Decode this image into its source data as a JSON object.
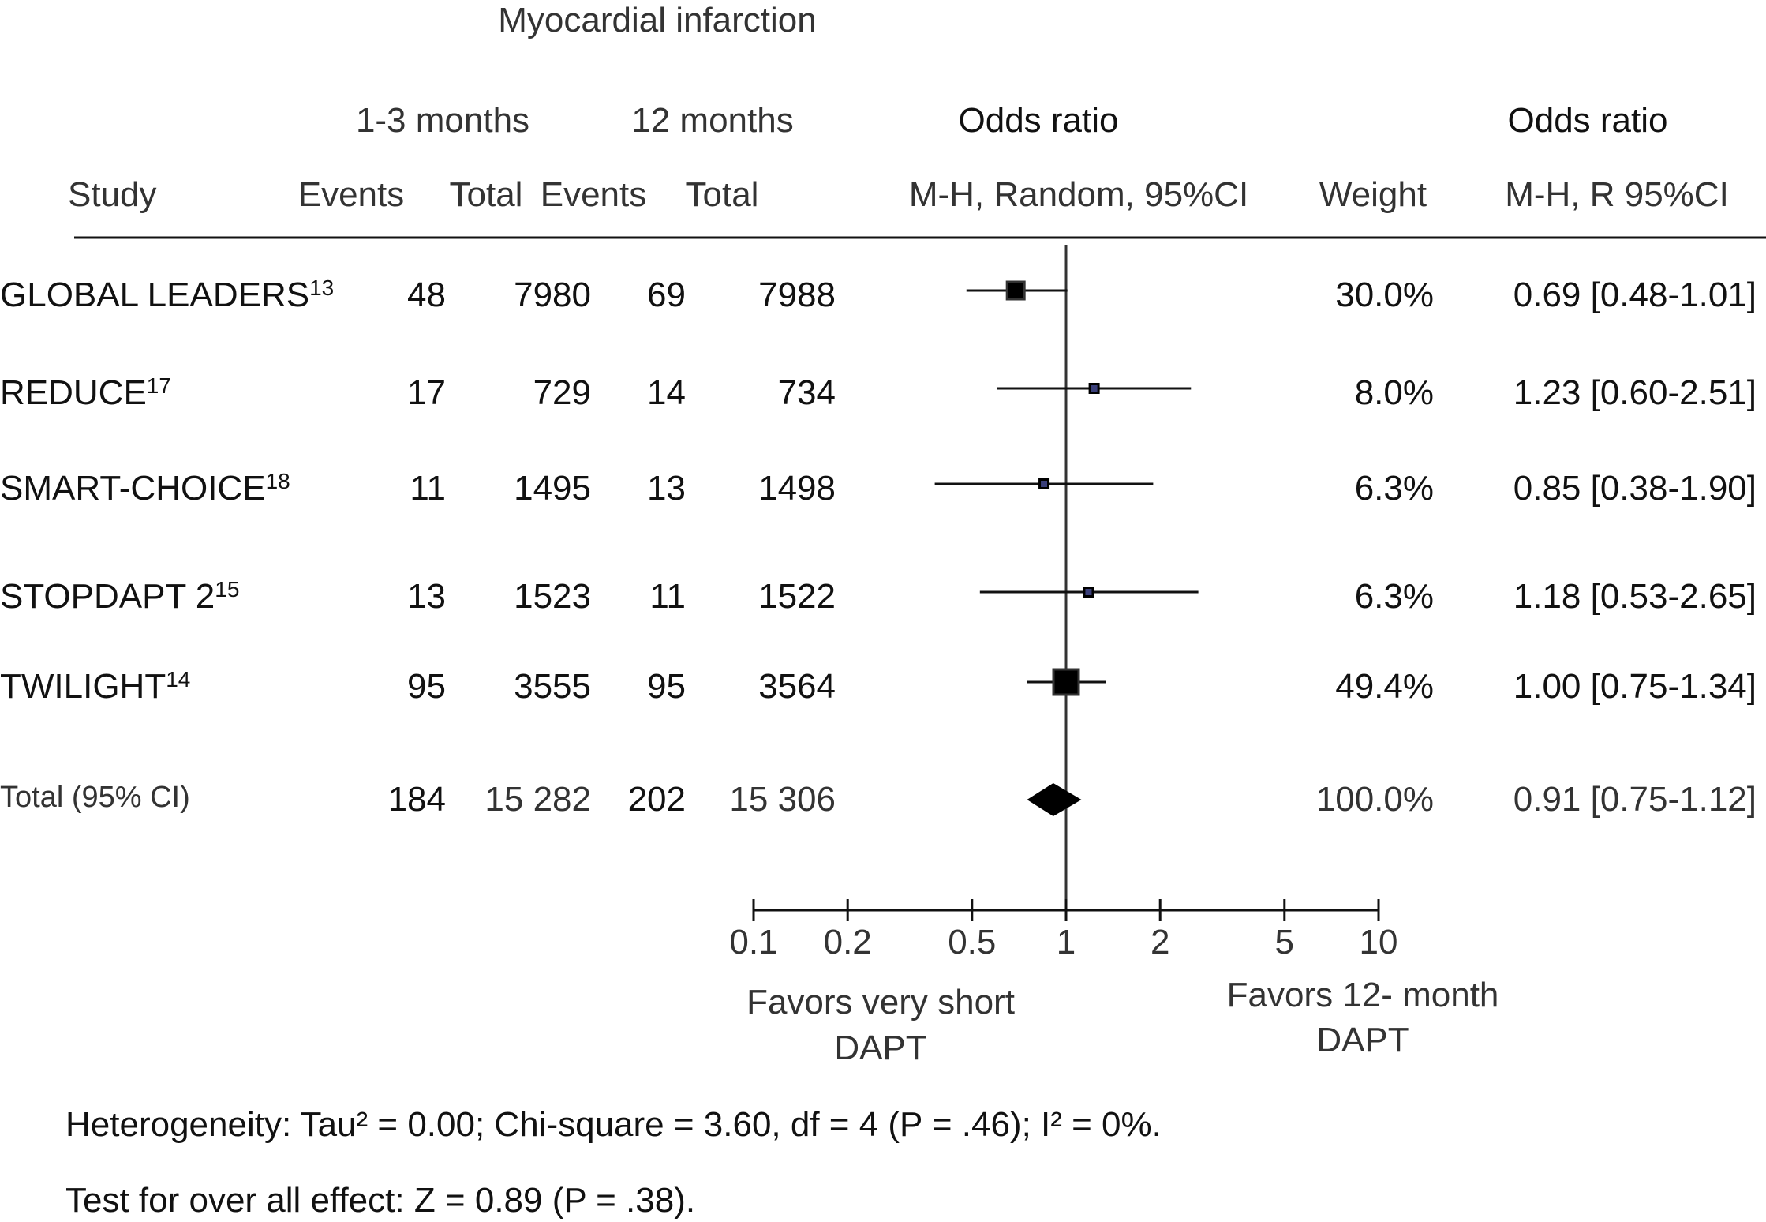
{
  "chart_data": {
    "type": "forest",
    "title": "Myocardial infarction",
    "group_headers": [
      "1-3 months",
      "12 months"
    ],
    "plot_header": [
      "Odds ratio",
      "M-H, Random, 95%CI"
    ],
    "right_header": [
      "Odds ratio",
      "M-H, R 95%CI"
    ],
    "columns": [
      "Study",
      "Events",
      "Total",
      "Events",
      "Total",
      "Weight"
    ],
    "studies": [
      {
        "name": "GLOBAL LEADERS",
        "ref": "13",
        "e1": "48",
        "n1": "7980",
        "e2": "69",
        "n2": "7988",
        "weight": "30.0%",
        "or_text": "0.69 [0.48-1.01]",
        "or": 0.69,
        "lo": 0.48,
        "hi": 1.01,
        "w": 30.0
      },
      {
        "name": "REDUCE",
        "ref": "17",
        "e1": "17",
        "n1": "729",
        "e2": "14",
        "n2": "734",
        "weight": "8.0%",
        "or_text": "1.23 [0.60-2.51]",
        "or": 1.23,
        "lo": 0.6,
        "hi": 2.51,
        "w": 8.0
      },
      {
        "name": "SMART-CHOICE",
        "ref": "18",
        "e1": "11",
        "n1": "1495",
        "e2": "13",
        "n2": "1498",
        "weight": "6.3%",
        "or_text": "0.85 [0.38-1.90]",
        "or": 0.85,
        "lo": 0.38,
        "hi": 1.9,
        "w": 6.3
      },
      {
        "name": "STOPDAPT 2",
        "ref": "15",
        "e1": "13",
        "n1": "1523",
        "e2": "11",
        "n2": "1522",
        "weight": "6.3%",
        "or_text": "1.18 [0.53-2.65]",
        "or": 1.18,
        "lo": 0.53,
        "hi": 2.65,
        "w": 6.3
      },
      {
        "name": "TWILIGHT",
        "ref": "14",
        "e1": "95",
        "n1": "3555",
        "e2": "95",
        "n2": "3564",
        "weight": "49.4%",
        "or_text": "1.00 [0.75-1.34]",
        "or": 1.0,
        "lo": 0.75,
        "hi": 1.34,
        "w": 49.4
      }
    ],
    "total": {
      "name": "Total (95% CI)",
      "e1": "184",
      "n1": "15 282",
      "e2": "202",
      "n2": "15 306",
      "weight": "100.0%",
      "or_text": "0.91 [0.75-1.12]",
      "or": 0.91,
      "lo": 0.75,
      "hi": 1.12
    },
    "x_scale": "log",
    "xlim": [
      0.1,
      10
    ],
    "ticks": [
      "0.1",
      "0.2",
      "0.5",
      "1",
      "2",
      "5",
      "10"
    ],
    "favors_left": [
      "Favors very short",
      "DAPT"
    ],
    "favors_right": [
      "Favors 12- month",
      "DAPT"
    ],
    "heterogeneity": "Heterogeneity: Tau² = 0.00; Chi-square = 3.60, df = 4 (P = .46); I² = 0%.",
    "overall_effect": "Test for over all effect: Z = 0.89 (P = .38).",
    "colors": {
      "small_box": "#3a3f7a",
      "box": "#000000"
    }
  }
}
